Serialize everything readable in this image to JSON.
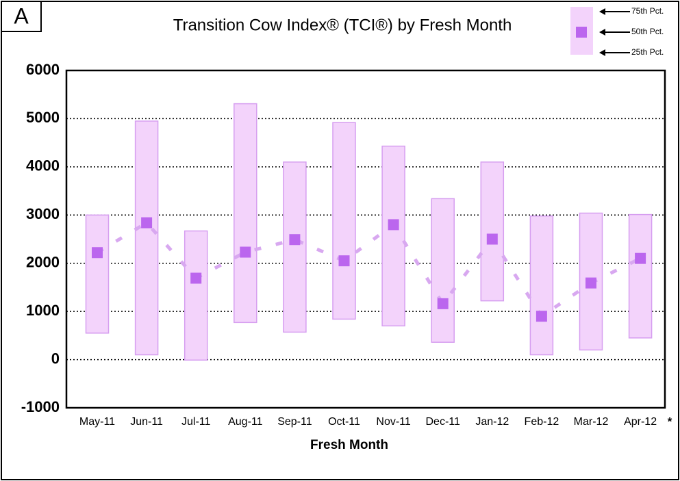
{
  "panel_label": "A",
  "chart_data": {
    "type": "floating_bar",
    "title": "Transition Cow Index® (TCI®) by Fresh Month",
    "x_label": "Fresh Month",
    "annotation": "*",
    "categories": [
      "May-11",
      "Jun-11",
      "Jul-11",
      "Aug-11",
      "Sep-11",
      "Oct-11",
      "Nov-11",
      "Dec-11",
      "Jan-12",
      "Feb-12",
      "Mar-12",
      "Apr-12"
    ],
    "series": [
      {
        "name": "75th Pct.",
        "color": "#f3d3fb",
        "values": [
          3000,
          4950,
          2670,
          5310,
          4100,
          4920,
          4430,
          3340,
          4100,
          2980,
          3040,
          3010
        ]
      },
      {
        "name": "50th Pct.",
        "color": "#bb66ee",
        "values": [
          2220,
          2840,
          1690,
          2230,
          2490,
          2050,
          2800,
          1160,
          2500,
          900,
          1590,
          2100
        ]
      },
      {
        "name": "25th Pct.",
        "color": "#f3d3fb",
        "values": [
          550,
          100,
          -10,
          770,
          570,
          840,
          700,
          360,
          1220,
          100,
          200,
          450
        ]
      }
    ],
    "line_color": "#d8a8f0",
    "bar_edge_color": "#d69ef0",
    "ylim": [
      -1000,
      6000
    ],
    "yticks": [
      -1000,
      0,
      1000,
      2000,
      3000,
      4000,
      5000,
      6000
    ],
    "grid": true
  }
}
